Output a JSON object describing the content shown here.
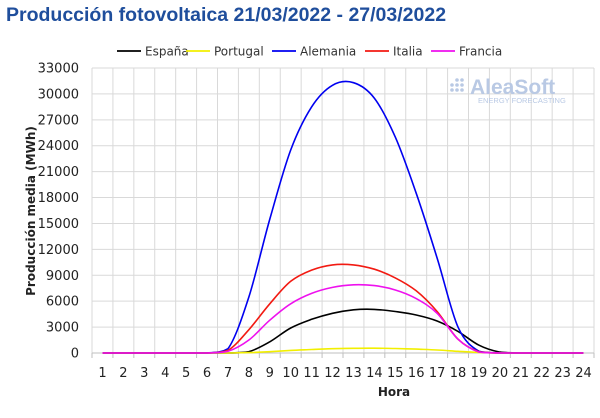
{
  "title": "Producción fotovoltaica 21/03/2022 - 27/03/2022",
  "logo": {
    "name": "AleaSoft",
    "tagline": "ENERGY FORECASTING"
  },
  "chart_data": {
    "type": "line",
    "xlabel": "Hora",
    "ylabel": "Producción media (MWh)",
    "xlim": [
      1,
      24
    ],
    "ylim": [
      0,
      33000
    ],
    "yticks": [
      0,
      3000,
      6000,
      9000,
      12000,
      15000,
      18000,
      21000,
      24000,
      27000,
      30000,
      33000
    ],
    "grid": true,
    "legend_position": "top",
    "x": [
      1,
      2,
      3,
      4,
      5,
      6,
      7,
      8,
      9,
      10,
      11,
      12,
      13,
      14,
      15,
      16,
      17,
      18,
      19,
      20,
      21,
      22,
      23,
      24
    ],
    "series": [
      {
        "name": "España",
        "color": "#000000",
        "values": [
          0,
          0,
          0,
          0,
          0,
          0,
          0,
          150,
          1300,
          2900,
          3900,
          4600,
          5000,
          5050,
          4800,
          4400,
          3700,
          2500,
          900,
          100,
          0,
          0,
          0,
          0
        ]
      },
      {
        "name": "Portugal",
        "color": "#f2ef00",
        "values": [
          0,
          0,
          0,
          0,
          0,
          0,
          0,
          50,
          150,
          300,
          400,
          500,
          550,
          560,
          520,
          450,
          350,
          200,
          60,
          0,
          0,
          0,
          0,
          0
        ]
      },
      {
        "name": "Alemania",
        "color": "#0000f0",
        "values": [
          0,
          0,
          0,
          0,
          0,
          0,
          500,
          6500,
          15500,
          23500,
          28500,
          31000,
          31300,
          29500,
          25000,
          18500,
          11000,
          3000,
          200,
          0,
          0,
          0,
          0,
          0
        ]
      },
      {
        "name": "Italia",
        "color": "#f21a12",
        "values": [
          0,
          0,
          0,
          0,
          0,
          0,
          300,
          2700,
          5700,
          8300,
          9600,
          10200,
          10200,
          9700,
          8700,
          7200,
          4800,
          1600,
          150,
          0,
          0,
          0,
          0,
          0
        ]
      },
      {
        "name": "Francia",
        "color": "#ee11ee",
        "values": [
          0,
          0,
          0,
          0,
          0,
          0,
          200,
          1500,
          3800,
          5700,
          6900,
          7600,
          7900,
          7800,
          7300,
          6300,
          4600,
          1600,
          100,
          0,
          0,
          0,
          0,
          0
        ]
      }
    ]
  }
}
